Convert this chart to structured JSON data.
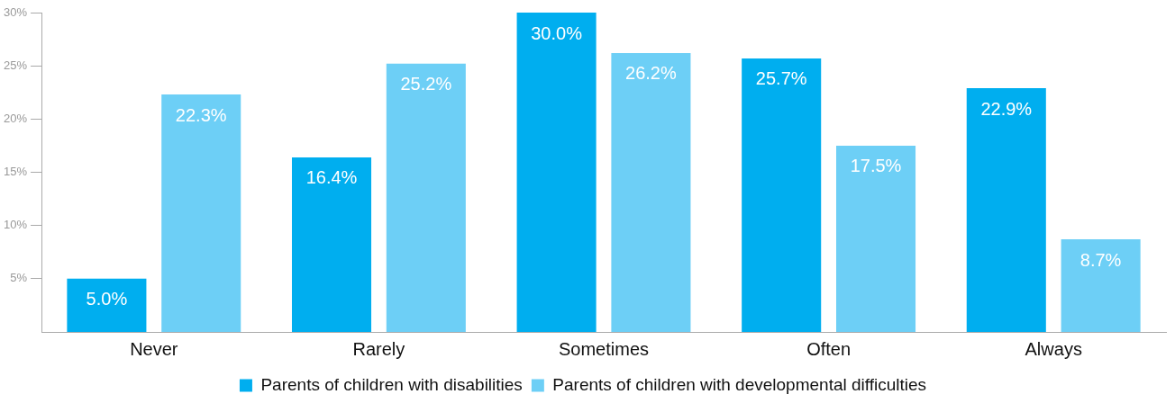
{
  "chart_data": {
    "type": "bar",
    "categories": [
      "Never",
      "Rarely",
      "Sometimes",
      "Often",
      "Always"
    ],
    "series": [
      {
        "name": "Parents of children with disabilities",
        "color": "#00aeef",
        "values": [
          5.0,
          16.4,
          30.0,
          25.7,
          22.9
        ],
        "value_labels": [
          "5.0%",
          "16.4%",
          "30.0%",
          "25.7%",
          "22.9%"
        ]
      },
      {
        "name": "Parents of children with developmental difficulties",
        "color": "#6dcff6",
        "values": [
          22.3,
          25.2,
          26.2,
          17.5,
          8.7
        ],
        "value_labels": [
          "22.3%",
          "25.2%",
          "26.2%",
          "17.5%",
          "8.7%"
        ]
      }
    ],
    "ylim": [
      0,
      30
    ],
    "yticks": [
      {
        "value": 5,
        "label": "5%"
      },
      {
        "value": 10,
        "label": "10%"
      },
      {
        "value": 15,
        "label": "15%"
      },
      {
        "value": 20,
        "label": "20%"
      },
      {
        "value": 25,
        "label": "25%"
      },
      {
        "value": 30,
        "label": "30%"
      }
    ],
    "grid": false,
    "legend": "bottom"
  }
}
